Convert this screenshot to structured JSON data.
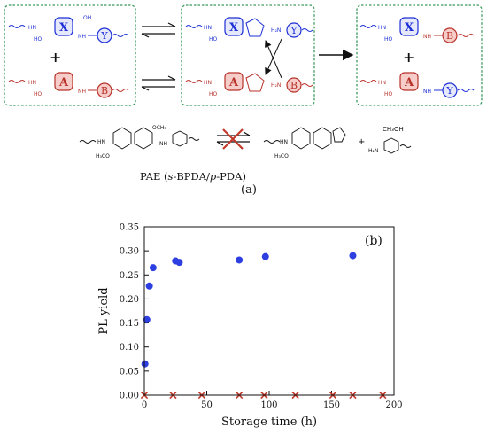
{
  "scheme": {
    "box1": {
      "top_units": [
        "X",
        "Y"
      ],
      "bottom_units": [
        "A",
        "B"
      ],
      "plus": "+"
    },
    "box2": {
      "top_units": [
        "X",
        "Y"
      ],
      "bottom_units": [
        "A",
        "B"
      ],
      "amine": "H₂N"
    },
    "box3": {
      "top_units": [
        "X",
        "B"
      ],
      "bottom_units": [
        "A",
        "Y"
      ],
      "plus": "+"
    },
    "groups": {
      "amide": "HN",
      "acid": "OH",
      "acid_left": "HO",
      "amide_right": "NH",
      "ester": "OCH₃",
      "ester_left": "H₃CO",
      "methanol": "CH₃OH",
      "plus": "+"
    },
    "pae_label_parts": [
      "PAE (",
      "s",
      "-BPDA/",
      "p",
      "-PDA)"
    ],
    "panel_a_label": "(a)",
    "colors": {
      "box_border": "#3a9a5c",
      "blue": "#1c2fd6",
      "red": "#b8322a",
      "red_fill": "#f6cdc9",
      "blue_fill": "#e6e8fb"
    }
  },
  "chart_data": {
    "type": "scatter",
    "panel_label": "(b)",
    "xlabel": "Storage time (h)",
    "ylabel": "PL yield",
    "xlim": [
      0,
      200
    ],
    "ylim": [
      0.0,
      0.35
    ],
    "x_ticks": [
      0,
      50,
      100,
      150,
      200
    ],
    "y_ticks": [
      0.0,
      0.05,
      0.1,
      0.15,
      0.2,
      0.25,
      0.3,
      0.35
    ],
    "y_tick_labels": [
      "0.00",
      "0.05",
      "0.10",
      "0.15",
      "0.20",
      "0.25",
      "0.30",
      "0.35"
    ],
    "grid": false,
    "legend": "none",
    "series": [
      {
        "marker": "circle",
        "color": "#2d3fe0",
        "x": [
          0.5,
          2,
          4,
          7,
          25,
          28,
          76,
          97,
          167
        ],
        "y": [
          0.065,
          0.157,
          0.227,
          0.265,
          0.279,
          0.276,
          0.281,
          0.288,
          0.29
        ]
      },
      {
        "marker": "x",
        "color": "#c0392b",
        "x": [
          0,
          23,
          46,
          76,
          96,
          121,
          151,
          167,
          191
        ],
        "y": [
          0.0,
          0.0,
          0.0,
          0.0,
          0.0,
          0.0,
          0.0,
          0.0,
          0.0
        ]
      }
    ]
  }
}
